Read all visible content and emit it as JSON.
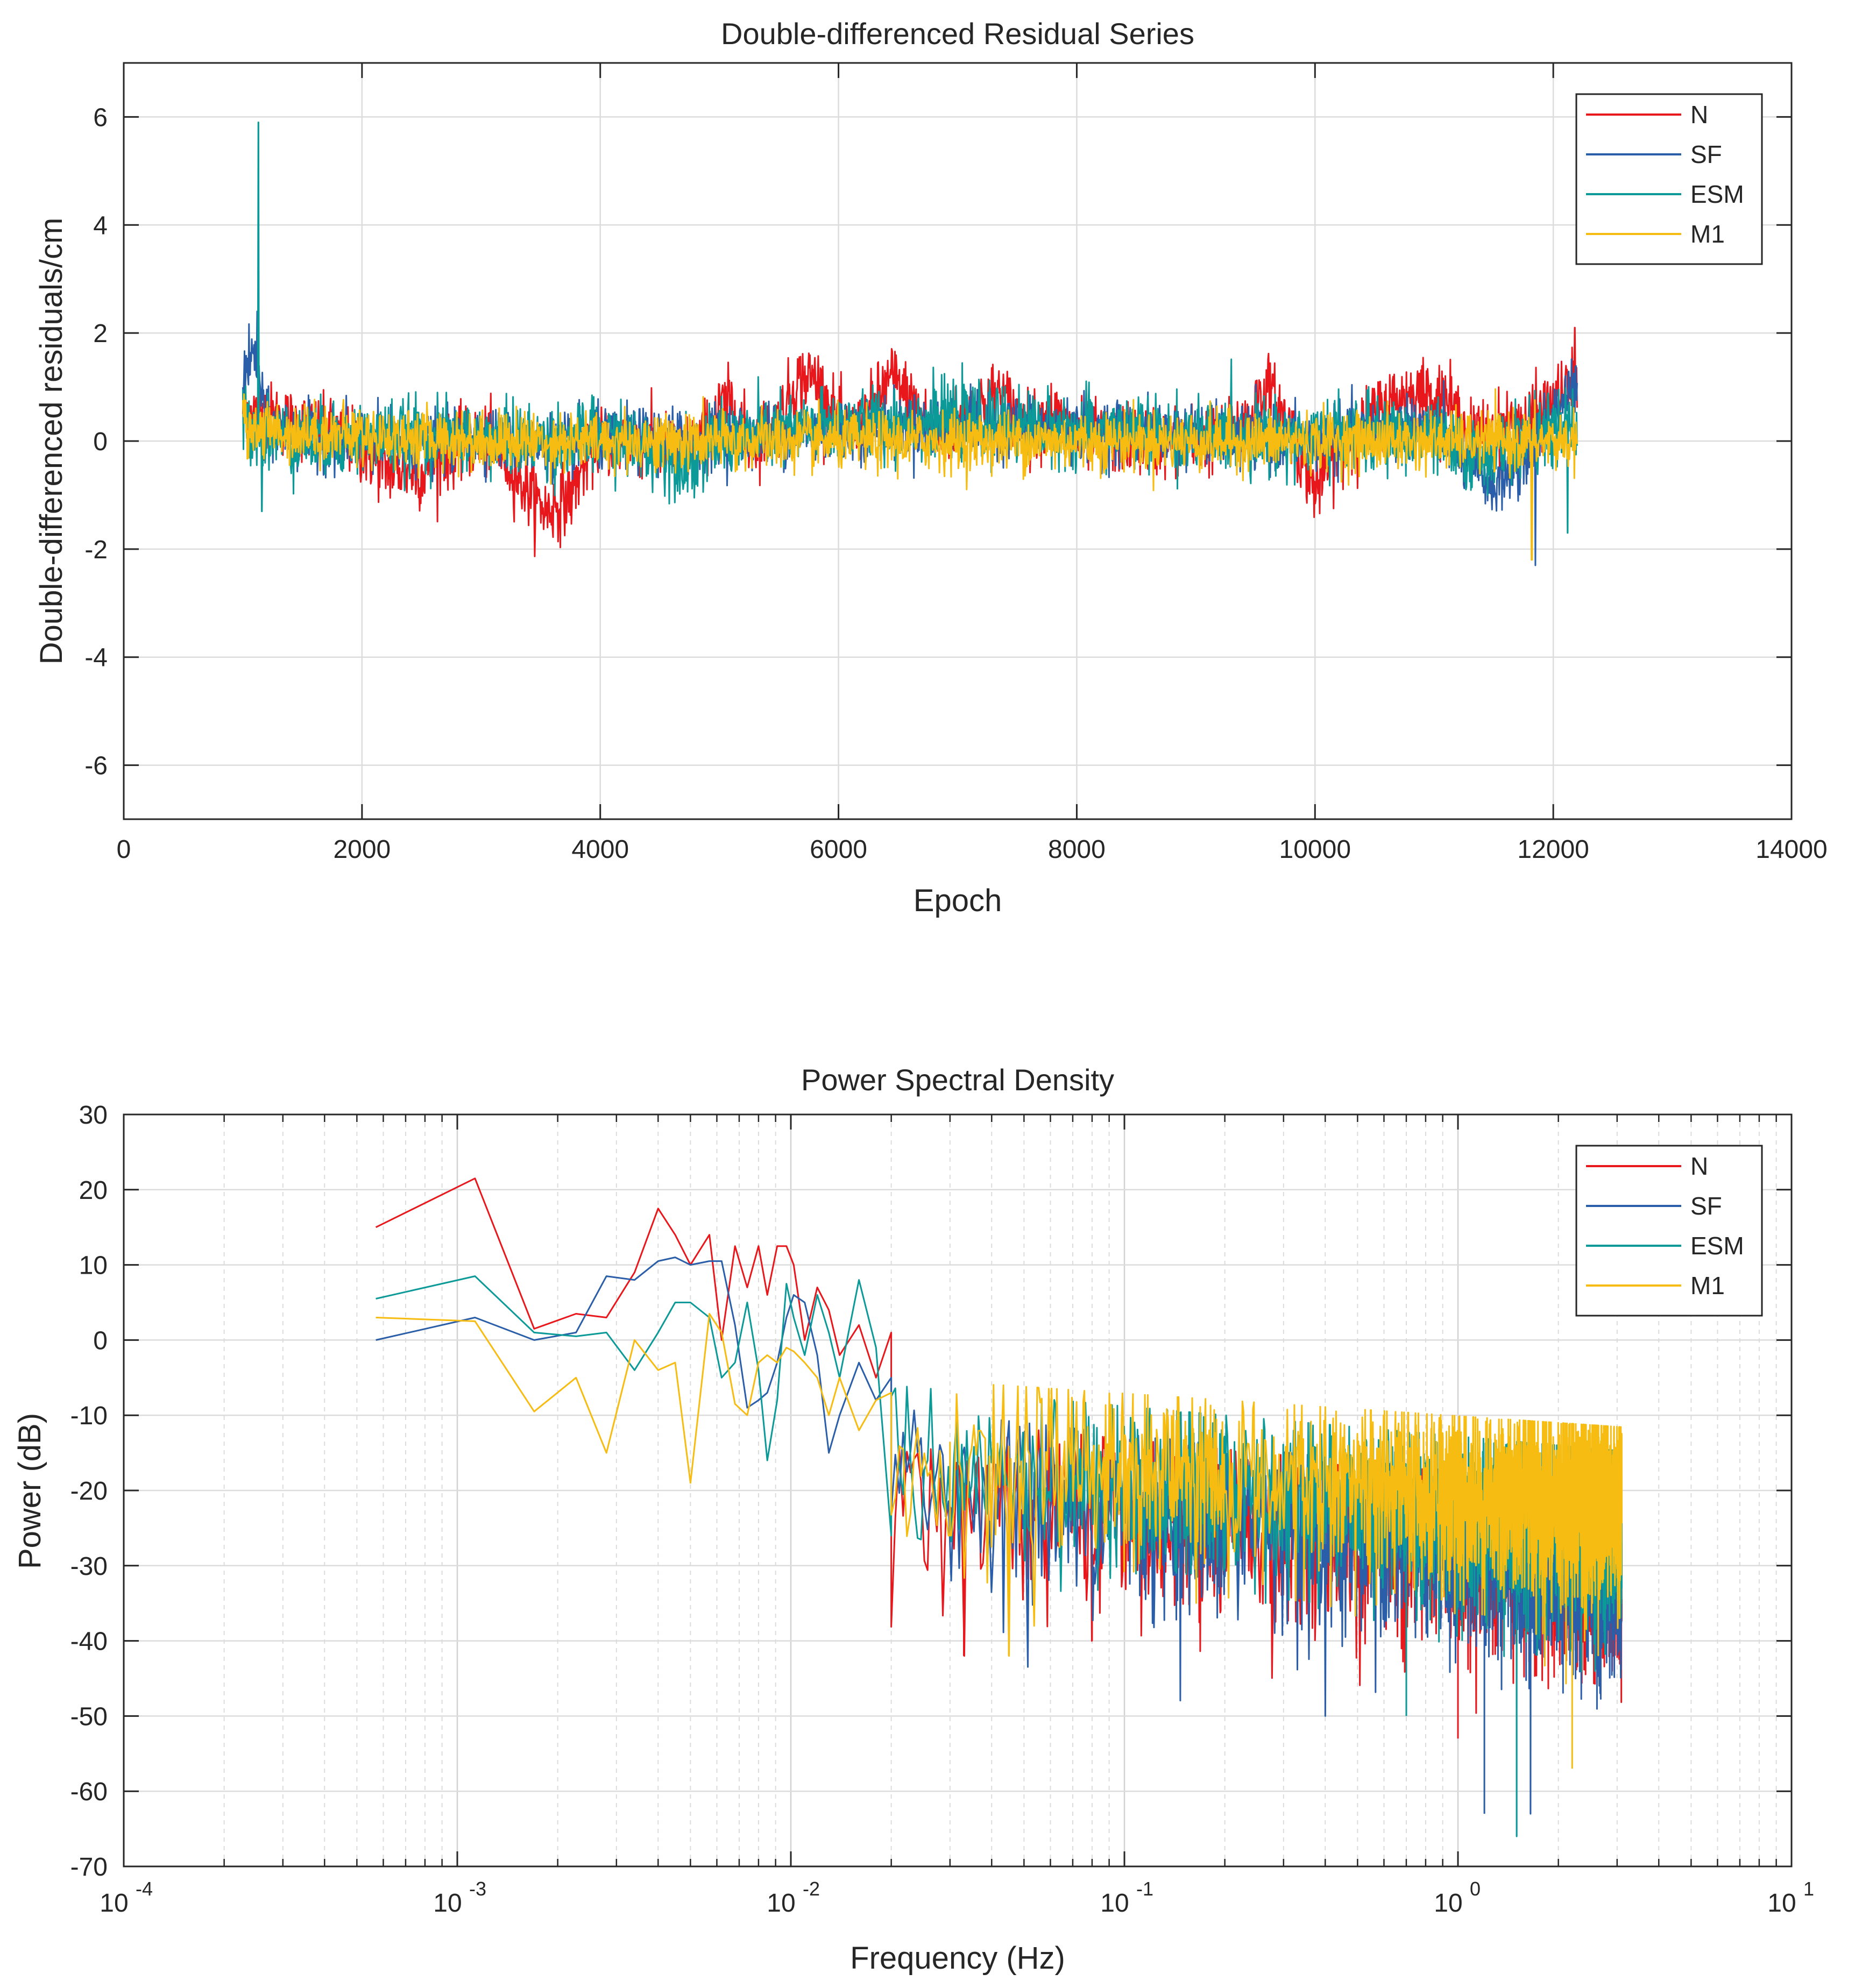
{
  "chart_data": [
    {
      "type": "line",
      "title": "Double-differenced Residual Series",
      "xlabel": "Epoch",
      "ylabel": "Double-differenced residuals/cm",
      "xlim": [
        0,
        14000
      ],
      "ylim": [
        -7,
        7
      ],
      "xticks": [
        0,
        2000,
        4000,
        6000,
        8000,
        10000,
        12000,
        14000
      ],
      "xtick_labels": [
        "0",
        "2000",
        "4000",
        "6000",
        "8000",
        "10000",
        "12000",
        "14000"
      ],
      "yticks": [
        -6,
        -4,
        -2,
        0,
        2,
        4,
        6
      ],
      "ytick_labels": [
        "-6",
        "-4",
        "-2",
        "0",
        "2",
        "4",
        "6"
      ],
      "grid": true,
      "legend_position": "top-right",
      "x_range": [
        1000,
        12200
      ],
      "series": [
        {
          "name": "N",
          "color": "#e8171b",
          "noise": 0.32,
          "trend": [
            [
              1000,
              0.6
            ],
            [
              1300,
              0.4
            ],
            [
              1600,
              0.2
            ],
            [
              1900,
              0.0
            ],
            [
              2200,
              -0.5
            ],
            [
              2500,
              -0.6
            ],
            [
              2800,
              -0.1
            ],
            [
              3100,
              0.0
            ],
            [
              3350,
              -0.8
            ],
            [
              3550,
              -1.3
            ],
            [
              3750,
              -1.0
            ],
            [
              3950,
              0.0
            ],
            [
              4300,
              0.0
            ],
            [
              4700,
              -0.2
            ],
            [
              4850,
              0.0
            ],
            [
              5000,
              0.6
            ],
            [
              5100,
              0.7
            ],
            [
              5250,
              0.0
            ],
            [
              5450,
              0.2
            ],
            [
              5650,
              1.1
            ],
            [
              5800,
              1.2
            ],
            [
              6000,
              0.3
            ],
            [
              6150,
              0.1
            ],
            [
              6300,
              0.7
            ],
            [
              6450,
              1.2
            ],
            [
              6650,
              0.6
            ],
            [
              6850,
              0.1
            ],
            [
              7150,
              0.6
            ],
            [
              7350,
              0.9
            ],
            [
              7600,
              0.2
            ],
            [
              7800,
              0.5
            ],
            [
              8000,
              0.1
            ],
            [
              8500,
              0.0
            ],
            [
              9000,
              0.0
            ],
            [
              9300,
              0.1
            ],
            [
              9450,
              0.5
            ],
            [
              9600,
              1.0
            ],
            [
              9800,
              0.2
            ],
            [
              10000,
              -0.9
            ],
            [
              10150,
              -0.3
            ],
            [
              10300,
              0.0
            ],
            [
              10600,
              0.7
            ],
            [
              10850,
              0.9
            ],
            [
              11100,
              0.8
            ],
            [
              11300,
              0.1
            ],
            [
              11500,
              0.2
            ],
            [
              11800,
              0.4
            ],
            [
              12000,
              0.7
            ],
            [
              12200,
              1.1
            ]
          ],
          "spikes": [
            [
              12180,
              2.1
            ]
          ]
        },
        {
          "name": "SF",
          "color": "#2b5ea8",
          "noise": 0.28,
          "trend": [
            [
              1000,
              1.2
            ],
            [
              1100,
              1.6
            ],
            [
              1200,
              0.3
            ],
            [
              1500,
              0.1
            ],
            [
              2000,
              0.0
            ],
            [
              2500,
              -0.1
            ],
            [
              3000,
              0.1
            ],
            [
              3500,
              -0.1
            ],
            [
              4000,
              0.0
            ],
            [
              5000,
              0.1
            ],
            [
              6000,
              0.2
            ],
            [
              7000,
              0.3
            ],
            [
              8000,
              0.2
            ],
            [
              9000,
              0.1
            ],
            [
              10000,
              0.0
            ],
            [
              10800,
              0.3
            ],
            [
              11100,
              0.1
            ],
            [
              11300,
              -0.5
            ],
            [
              11500,
              -0.8
            ],
            [
              11700,
              -0.5
            ],
            [
              11900,
              0.2
            ],
            [
              12100,
              0.8
            ],
            [
              12200,
              1.0
            ]
          ],
          "spikes": [
            [
              1120,
              2.4
            ],
            [
              11850,
              -2.3
            ]
          ]
        },
        {
          "name": "ESM",
          "color": "#0c9a98",
          "noise": 0.33,
          "trend": [
            [
              1000,
              0.4
            ],
            [
              1100,
              0.2
            ],
            [
              1500,
              0.0
            ],
            [
              2500,
              0.1
            ],
            [
              3500,
              0.0
            ],
            [
              4000,
              0.1
            ],
            [
              4800,
              -0.4
            ],
            [
              5000,
              0.0
            ],
            [
              6000,
              0.3
            ],
            [
              7000,
              0.4
            ],
            [
              8000,
              0.2
            ],
            [
              9000,
              0.1
            ],
            [
              10000,
              0.1
            ],
            [
              11000,
              0.1
            ],
            [
              11300,
              -0.3
            ],
            [
              11600,
              -0.1
            ],
            [
              12000,
              0.2
            ],
            [
              12200,
              0.3
            ]
          ],
          "spikes": [
            [
              1130,
              5.9
            ],
            [
              1160,
              -1.3
            ],
            [
              12120,
              -1.7
            ]
          ]
        },
        {
          "name": "M1",
          "color": "#f6bc12",
          "noise": 0.27,
          "trend": [
            [
              1000,
              0.3
            ],
            [
              1200,
              0.2
            ],
            [
              2000,
              0.1
            ],
            [
              3000,
              0.0
            ],
            [
              4000,
              0.0
            ],
            [
              5000,
              0.0
            ],
            [
              6000,
              0.0
            ],
            [
              7000,
              0.0
            ],
            [
              8000,
              0.0
            ],
            [
              9000,
              0.0
            ],
            [
              10000,
              0.0
            ],
            [
              11000,
              0.0
            ],
            [
              12000,
              0.0
            ],
            [
              12200,
              0.0
            ]
          ],
          "spikes": [
            [
              11820,
              -2.2
            ]
          ]
        }
      ]
    },
    {
      "type": "line",
      "title": "Power Spectral Density",
      "xlabel": "Frequency (Hz)",
      "ylabel": "Power (dB)",
      "xscale": "log",
      "xlim_exp": [
        -4,
        1
      ],
      "xtick_exponents": [
        "-4",
        "-3",
        "-2",
        "-1",
        "0",
        "1"
      ],
      "xtick_base": "10",
      "ylim": [
        -70,
        30
      ],
      "yticks": [
        -70,
        -60,
        -50,
        -40,
        -30,
        -20,
        -10,
        0,
        10,
        20,
        30
      ],
      "ytick_labels": [
        "-70",
        "-60",
        "-50",
        "-40",
        "-30",
        "-20",
        "-10",
        "0",
        "10",
        "20",
        "30"
      ],
      "grid": true,
      "legend_position": "top-right",
      "f_range": [
        0.00057,
        3.1
      ],
      "series": [
        {
          "name": "N",
          "color": "#e8171b",
          "low_freq_points": [
            [
              0.00057,
              15
            ],
            [
              0.00113,
              21.5
            ],
            [
              0.0017,
              1.5
            ],
            [
              0.00227,
              3.5
            ],
            [
              0.0028,
              3
            ],
            [
              0.0034,
              9
            ],
            [
              0.004,
              17.5
            ],
            [
              0.0045,
              14
            ],
            [
              0.005,
              10
            ],
            [
              0.0057,
              14
            ],
            [
              0.0062,
              0
            ],
            [
              0.0068,
              12.5
            ],
            [
              0.0074,
              7
            ],
            [
              0.008,
              12.5
            ],
            [
              0.0085,
              6
            ],
            [
              0.0091,
              12.5
            ],
            [
              0.0097,
              12.5
            ],
            [
              0.0102,
              10
            ],
            [
              0.011,
              0
            ],
            [
              0.012,
              7
            ],
            [
              0.013,
              4
            ],
            [
              0.014,
              -2
            ],
            [
              0.016,
              2
            ],
            [
              0.018,
              -5
            ],
            [
              0.02,
              1
            ]
          ],
          "noise_floor_start": -18,
          "noise_floor_slope": -4.5,
          "min_dips": [
            [
              0.033,
              -42
            ],
            [
              0.08,
              -40
            ],
            [
              1.0,
              -53
            ],
            [
              2.9,
              -44
            ]
          ]
        },
        {
          "name": "SF",
          "color": "#2b5ea8",
          "low_freq_points": [
            [
              0.00057,
              0
            ],
            [
              0.00113,
              3
            ],
            [
              0.0017,
              0
            ],
            [
              0.00227,
              1
            ],
            [
              0.0028,
              8.5
            ],
            [
              0.0034,
              8
            ],
            [
              0.004,
              10.5
            ],
            [
              0.0045,
              11
            ],
            [
              0.005,
              10
            ],
            [
              0.0057,
              10.5
            ],
            [
              0.0062,
              10.5
            ],
            [
              0.0068,
              2
            ],
            [
              0.0074,
              -9
            ],
            [
              0.008,
              -8
            ],
            [
              0.0085,
              -7
            ],
            [
              0.0091,
              -3
            ],
            [
              0.0097,
              3
            ],
            [
              0.0102,
              6
            ],
            [
              0.011,
              5
            ],
            [
              0.012,
              -2
            ],
            [
              0.013,
              -15
            ],
            [
              0.014,
              -10
            ],
            [
              0.016,
              -3
            ],
            [
              0.018,
              -8
            ],
            [
              0.02,
              -5
            ]
          ],
          "noise_floor_start": -17,
          "noise_floor_slope": -5,
          "min_dips": [
            [
              0.4,
              -50
            ],
            [
              1.2,
              -63
            ],
            [
              1.65,
              -63
            ]
          ]
        },
        {
          "name": "ESM",
          "color": "#0c9a98",
          "low_freq_points": [
            [
              0.00057,
              5.5
            ],
            [
              0.00113,
              8.5
            ],
            [
              0.0017,
              1
            ],
            [
              0.00227,
              0.5
            ],
            [
              0.0028,
              1
            ],
            [
              0.0034,
              -4
            ],
            [
              0.004,
              1
            ],
            [
              0.0045,
              5
            ],
            [
              0.005,
              5
            ],
            [
              0.0057,
              3
            ],
            [
              0.0062,
              -5
            ],
            [
              0.0068,
              -3
            ],
            [
              0.0074,
              5
            ],
            [
              0.008,
              -4
            ],
            [
              0.0085,
              -16
            ],
            [
              0.0091,
              -8
            ],
            [
              0.0097,
              7.5
            ],
            [
              0.0102,
              3
            ],
            [
              0.011,
              -2
            ],
            [
              0.012,
              6
            ],
            [
              0.013,
              1
            ],
            [
              0.014,
              -5
            ],
            [
              0.016,
              8
            ],
            [
              0.018,
              -1
            ],
            [
              0.02,
              -26
            ]
          ],
          "noise_floor_start": -14,
          "noise_floor_slope": -4,
          "min_dips": [
            [
              1.5,
              -66
            ],
            [
              0.7,
              -50
            ]
          ]
        },
        {
          "name": "M1",
          "color": "#f6bc12",
          "low_freq_points": [
            [
              0.00057,
              3
            ],
            [
              0.00113,
              2.5
            ],
            [
              0.0017,
              -9.5
            ],
            [
              0.00227,
              -5
            ],
            [
              0.0028,
              -15
            ],
            [
              0.0034,
              0
            ],
            [
              0.004,
              -4
            ],
            [
              0.0045,
              -3
            ],
            [
              0.005,
              -19
            ],
            [
              0.0057,
              3.5
            ],
            [
              0.0062,
              1
            ],
            [
              0.0068,
              -8.5
            ],
            [
              0.0074,
              -10
            ],
            [
              0.008,
              -3
            ],
            [
              0.0085,
              -2
            ],
            [
              0.0091,
              -3
            ],
            [
              0.0097,
              -1
            ],
            [
              0.0102,
              -1.5
            ],
            [
              0.011,
              -3
            ],
            [
              0.012,
              -5
            ],
            [
              0.013,
              -10
            ],
            [
              0.014,
              -5
            ],
            [
              0.016,
              -12
            ],
            [
              0.018,
              -8
            ],
            [
              0.02,
              -7
            ]
          ],
          "noise_floor_start": -13,
          "noise_floor_slope": -3,
          "min_dips": [
            [
              0.03,
              -26
            ],
            [
              0.045,
              -42
            ],
            [
              2.2,
              -57
            ]
          ]
        }
      ]
    }
  ]
}
